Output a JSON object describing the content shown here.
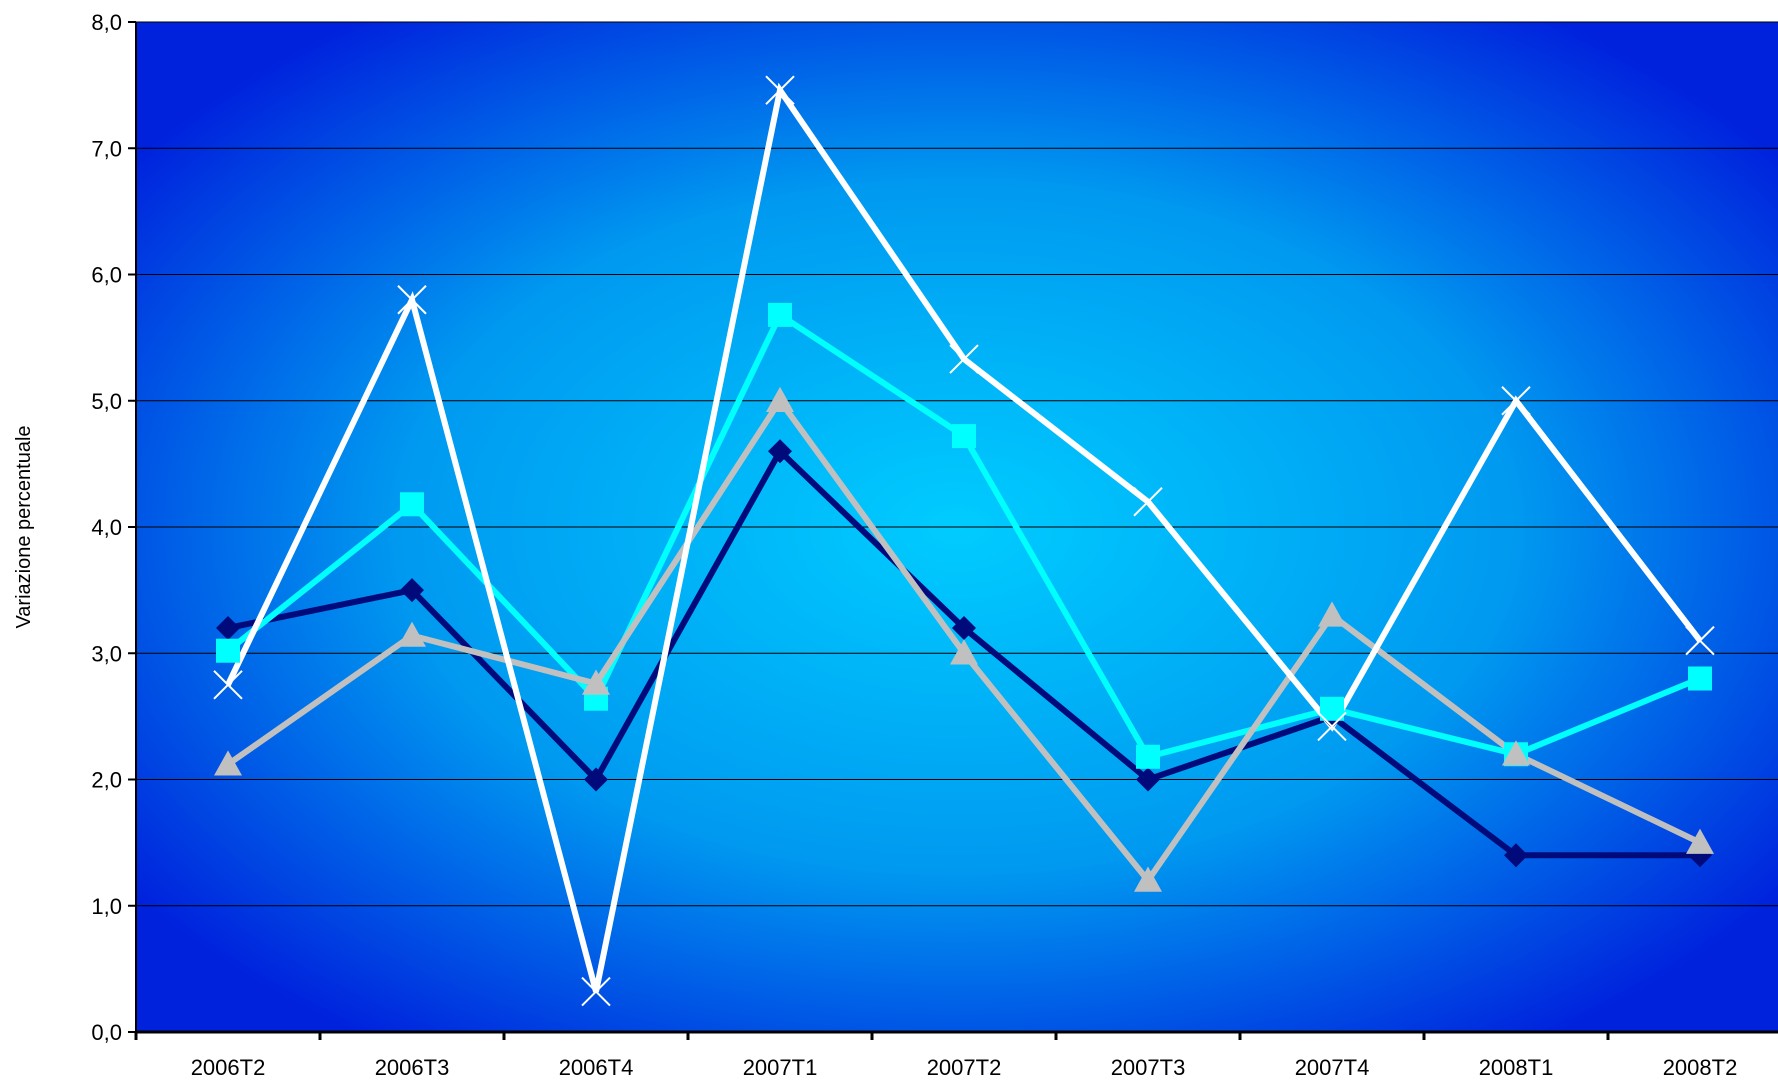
{
  "chart_data": {
    "type": "line",
    "title": "",
    "xlabel": "",
    "ylabel": "Variazione percentuale",
    "ylim": [
      0,
      8
    ],
    "y_ticks": [
      "0,0",
      "1,0",
      "2,0",
      "3,0",
      "4,0",
      "5,0",
      "6,0",
      "7,0",
      "8,0"
    ],
    "y_tick_values": [
      0,
      1,
      2,
      3,
      4,
      5,
      6,
      7,
      8
    ],
    "categories": [
      "2006T2",
      "2006T3",
      "2006T4",
      "2007T1",
      "2007T2",
      "2007T3",
      "2007T4",
      "2008T1",
      "2008T2"
    ],
    "grid": true,
    "legend": "none",
    "background": {
      "edge": "#0022dd",
      "center": "#00ccff"
    },
    "series": [
      {
        "marker": "diamond",
        "color": "#000a7a",
        "values": [
          3.2,
          3.5,
          2.0,
          4.6,
          3.2,
          2.0,
          2.5,
          1.4,
          1.4
        ]
      },
      {
        "marker": "square",
        "color": "#00ffff",
        "values": [
          3.02,
          4.18,
          2.64,
          5.68,
          4.72,
          2.18,
          2.56,
          2.2,
          2.8
        ]
      },
      {
        "marker": "triangle",
        "color": "#c0c0c0",
        "values": [
          2.12,
          3.14,
          2.76,
          5.0,
          3.0,
          1.2,
          3.3,
          2.2,
          1.5
        ]
      },
      {
        "marker": "x",
        "color": "#ffffff",
        "values": [
          2.75,
          5.8,
          0.32,
          7.46,
          5.33,
          4.2,
          2.42,
          5.0,
          3.1
        ]
      }
    ]
  }
}
